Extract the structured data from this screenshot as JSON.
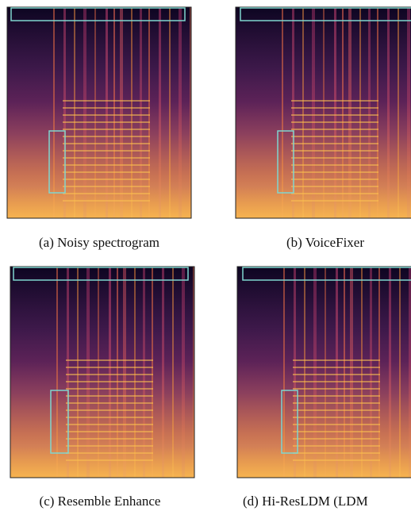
{
  "figure": {
    "panels": [
      {
        "caption": "(a) Noisy spectrogram"
      },
      {
        "caption": "(b) VoiceFixer"
      },
      {
        "caption": "(c) Resemble Enhance"
      },
      {
        "caption": "(d) Hi-ResLDM (LDM"
      }
    ]
  }
}
